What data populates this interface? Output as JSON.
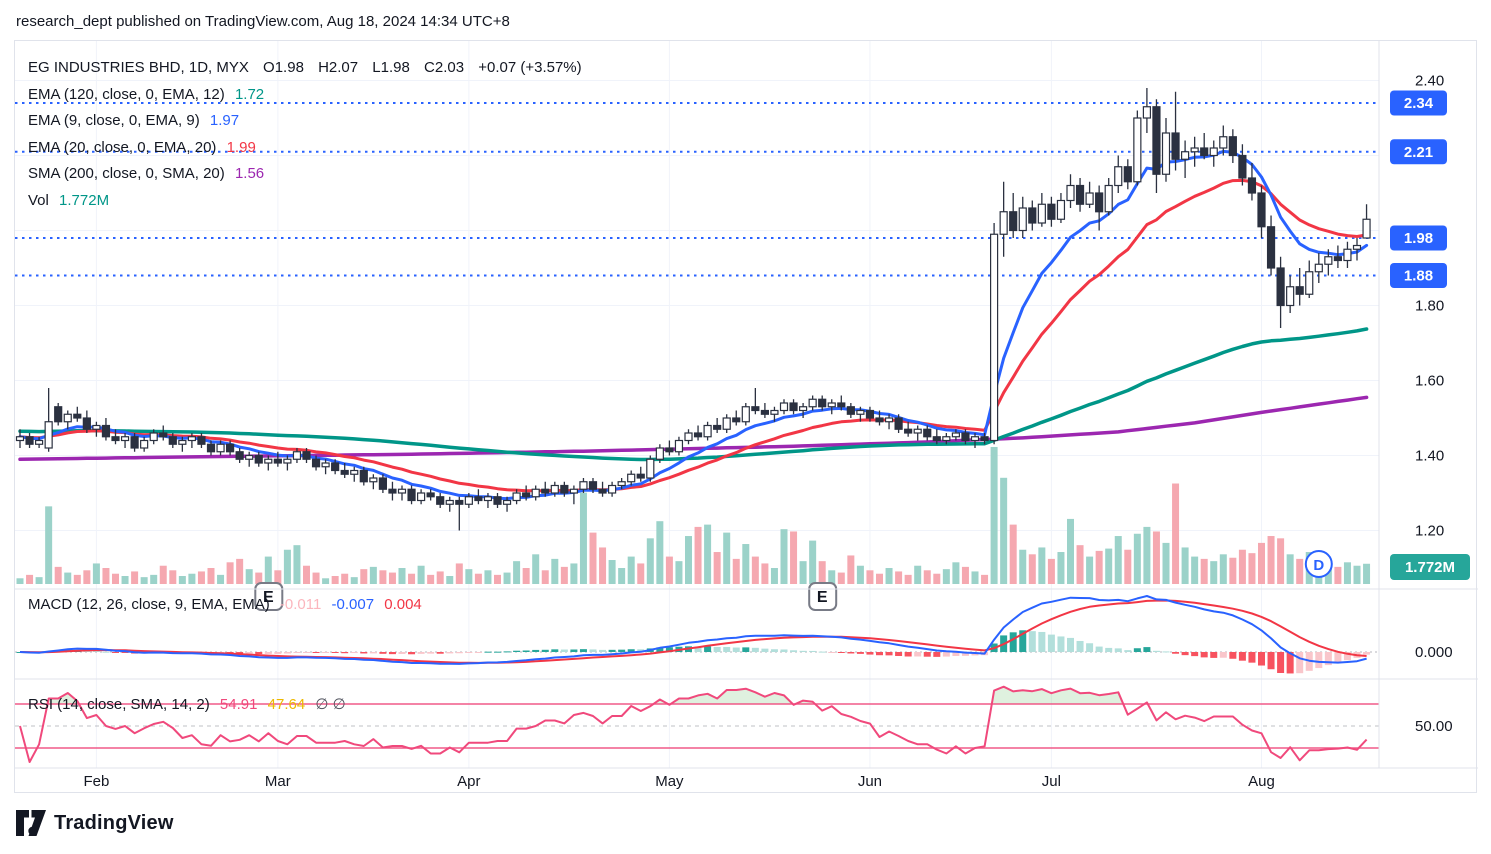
{
  "header": {
    "attribution": "research_dept published on TradingView.com, Aug 18, 2024 14:34 UTC+8"
  },
  "footer": {
    "brand": "TradingView"
  },
  "legend": {
    "symbol_row": {
      "title": "EG INDUSTRIES BHD, 1D, MYX",
      "o": "O1.98",
      "h": "H2.07",
      "l": "L1.98",
      "c": "C2.03",
      "change": "+0.07 (+3.57%)"
    },
    "ema120": {
      "label": "EMA (120, close, 0, EMA, 12)",
      "value": "1.72",
      "color": "#009688"
    },
    "ema9": {
      "label": "EMA (9, close, 0, EMA, 9)",
      "value": "1.97",
      "color": "#2962ff"
    },
    "ema20": {
      "label": "EMA (20, close, 0, EMA, 20)",
      "value": "1.99",
      "color": "#f23645"
    },
    "sma200": {
      "label": "SMA (200, close, 0, SMA, 20)",
      "value": "1.56",
      "color": "#9c27b0"
    },
    "vol": {
      "label": "Vol",
      "value": "1.772M",
      "color": "#009688"
    },
    "macd": {
      "label": "MACD (12, 26, close, 9, EMA, EMA)",
      "hist_value": "-0.011",
      "macd_value": "-0.007",
      "signal_value": "0.004",
      "hist_color": "#fbb6bd",
      "macd_color": "#2962ff",
      "signal_color": "#f23645"
    },
    "rsi": {
      "label": "RSI (14, close, SMA, 14, 2)",
      "value1": "54.91",
      "value2": "47.64",
      "empty": "∅ ∅",
      "value1_color": "#f0497c",
      "value2_color": "#edb800",
      "empty_color": "#50535e"
    }
  },
  "chart_data": {
    "type": "candlestick",
    "title": "EG INDUSTRIES BHD",
    "interval": "1D",
    "exchange": "MYX",
    "last_bar": {
      "open": 1.98,
      "high": 2.07,
      "low": 1.98,
      "close": 2.03,
      "change": 0.07,
      "change_pct": 3.57
    },
    "indicator_values": {
      "ema120": 1.72,
      "ema9": 1.97,
      "ema20": 1.99,
      "sma200": 1.56,
      "volume": "1.772M",
      "macd_hist": -0.011,
      "macd": -0.007,
      "macd_signal": 0.004,
      "rsi": 54.91,
      "rsi_sma": 47.64
    },
    "ylim": [
      1.14,
      2.46
    ],
    "y_ticks": [
      2.4,
      2.2,
      2.0,
      1.8,
      1.6,
      1.4,
      1.2
    ],
    "y_tick_labels": [
      "2.40",
      "1.80",
      "1.60",
      "1.40",
      "1.20"
    ],
    "y_tick_label_prices": [
      2.4,
      1.8,
      1.6,
      1.4,
      1.2
    ],
    "levels": [
      {
        "price": 2.34,
        "label": "2.34"
      },
      {
        "price": 2.21,
        "label": "2.21"
      },
      {
        "price": 1.98,
        "label": "1.98"
      },
      {
        "price": 1.88,
        "label": "1.88"
      }
    ],
    "volume_badge": {
      "label": "1.772M",
      "color": "#26a69a"
    },
    "macd_axis_label": "0.000",
    "rsi_axis_label": "50.00",
    "rsi_bands": [
      70,
      50,
      30
    ],
    "months": [
      {
        "label": "Feb",
        "index": 8
      },
      {
        "label": "Mar",
        "index": 27
      },
      {
        "label": "Apr",
        "index": 47
      },
      {
        "label": "May",
        "index": 68
      },
      {
        "label": "Jun",
        "index": 89
      },
      {
        "label": "Jul",
        "index": 108
      },
      {
        "label": "Aug",
        "index": 130
      }
    ],
    "markers": [
      {
        "type": "E",
        "index": 26
      },
      {
        "type": "E",
        "index": 84
      },
      {
        "type": "D",
        "index": 136
      }
    ],
    "sma200_anchors": [
      [
        0,
        1.39
      ],
      [
        20,
        1.397
      ],
      [
        40,
        1.403
      ],
      [
        60,
        1.412
      ],
      [
        80,
        1.424
      ],
      [
        95,
        1.436
      ],
      [
        105,
        1.447
      ],
      [
        115,
        1.463
      ],
      [
        123,
        1.487
      ],
      [
        130,
        1.515
      ],
      [
        136,
        1.537
      ],
      [
        141,
        1.555
      ]
    ],
    "candles": [
      [
        1.44,
        1.47,
        1.42,
        1.45,
        0.5
      ],
      [
        1.45,
        1.46,
        1.42,
        1.43,
        0.8
      ],
      [
        1.43,
        1.45,
        1.42,
        1.44,
        0.6
      ],
      [
        1.42,
        1.58,
        1.41,
        1.49,
        6.8
      ],
      [
        1.53,
        1.54,
        1.48,
        1.49,
        1.5
      ],
      [
        1.49,
        1.52,
        1.47,
        1.51,
        1.0
      ],
      [
        1.51,
        1.53,
        1.49,
        1.5,
        0.8
      ],
      [
        1.5,
        1.52,
        1.46,
        1.47,
        1.2
      ],
      [
        1.47,
        1.49,
        1.45,
        1.48,
        1.8
      ],
      [
        1.48,
        1.5,
        1.44,
        1.45,
        1.4
      ],
      [
        1.45,
        1.47,
        1.43,
        1.44,
        0.9
      ],
      [
        1.44,
        1.46,
        1.42,
        1.45,
        0.7
      ],
      [
        1.45,
        1.46,
        1.41,
        1.42,
        1.1
      ],
      [
        1.42,
        1.45,
        1.41,
        1.44,
        0.6
      ],
      [
        1.44,
        1.47,
        1.43,
        1.46,
        0.8
      ],
      [
        1.46,
        1.48,
        1.44,
        1.45,
        1.6
      ],
      [
        1.45,
        1.46,
        1.42,
        1.43,
        1.2
      ],
      [
        1.43,
        1.45,
        1.41,
        1.44,
        0.7
      ],
      [
        1.44,
        1.46,
        1.42,
        1.45,
        0.9
      ],
      [
        1.45,
        1.46,
        1.42,
        1.43,
        1.1
      ],
      [
        1.43,
        1.44,
        1.4,
        1.41,
        1.4
      ],
      [
        1.41,
        1.44,
        1.4,
        1.43,
        0.8
      ],
      [
        1.43,
        1.44,
        1.4,
        1.41,
        1.9
      ],
      [
        1.41,
        1.42,
        1.38,
        1.39,
        2.2
      ],
      [
        1.39,
        1.41,
        1.37,
        1.4,
        1.3
      ],
      [
        1.4,
        1.41,
        1.37,
        1.38,
        1.0
      ],
      [
        1.38,
        1.4,
        1.36,
        1.39,
        2.4
      ],
      [
        1.39,
        1.41,
        1.37,
        1.38,
        1.2
      ],
      [
        1.38,
        1.4,
        1.36,
        1.39,
        3.0
      ],
      [
        1.39,
        1.42,
        1.38,
        1.41,
        3.4
      ],
      [
        1.41,
        1.42,
        1.38,
        1.39,
        1.6
      ],
      [
        1.39,
        1.4,
        1.36,
        1.37,
        1.0
      ],
      [
        1.37,
        1.39,
        1.35,
        1.38,
        0.5
      ],
      [
        1.38,
        1.39,
        1.35,
        1.36,
        0.7
      ],
      [
        1.36,
        1.38,
        1.34,
        1.35,
        0.9
      ],
      [
        1.35,
        1.37,
        1.33,
        1.36,
        0.6
      ],
      [
        1.36,
        1.37,
        1.32,
        1.33,
        1.3
      ],
      [
        1.33,
        1.35,
        1.31,
        1.34,
        1.5
      ],
      [
        1.34,
        1.35,
        1.3,
        1.31,
        1.2
      ],
      [
        1.31,
        1.33,
        1.28,
        1.3,
        1.0
      ],
      [
        1.3,
        1.32,
        1.28,
        1.31,
        1.4
      ],
      [
        1.31,
        1.32,
        1.27,
        1.28,
        0.9
      ],
      [
        1.28,
        1.31,
        1.27,
        1.3,
        1.6
      ],
      [
        1.3,
        1.31,
        1.28,
        1.29,
        0.8
      ],
      [
        1.29,
        1.3,
        1.26,
        1.27,
        1.1
      ],
      [
        1.27,
        1.29,
        1.25,
        1.28,
        0.7
      ],
      [
        1.28,
        1.29,
        1.2,
        1.27,
        1.8
      ],
      [
        1.27,
        1.3,
        1.26,
        1.29,
        1.3
      ],
      [
        1.29,
        1.31,
        1.27,
        1.28,
        0.9
      ],
      [
        1.28,
        1.3,
        1.26,
        1.29,
        1.2
      ],
      [
        1.29,
        1.3,
        1.26,
        1.27,
        0.8
      ],
      [
        1.27,
        1.29,
        1.25,
        1.28,
        1.0
      ],
      [
        1.28,
        1.31,
        1.27,
        1.3,
        2.0
      ],
      [
        1.3,
        1.32,
        1.28,
        1.29,
        1.4
      ],
      [
        1.29,
        1.32,
        1.28,
        1.31,
        2.6
      ],
      [
        1.31,
        1.33,
        1.29,
        1.3,
        1.2
      ],
      [
        1.3,
        1.33,
        1.29,
        1.32,
        2.2
      ],
      [
        1.32,
        1.33,
        1.29,
        1.3,
        1.5
      ],
      [
        1.3,
        1.32,
        1.27,
        1.31,
        1.8
      ],
      [
        1.31,
        1.34,
        1.3,
        1.33,
        8.0
      ],
      [
        1.33,
        1.34,
        1.3,
        1.31,
        4.5
      ],
      [
        1.31,
        1.33,
        1.29,
        1.3,
        3.2
      ],
      [
        1.3,
        1.33,
        1.29,
        1.32,
        2.1
      ],
      [
        1.32,
        1.34,
        1.31,
        1.33,
        1.4
      ],
      [
        1.33,
        1.36,
        1.32,
        1.35,
        2.4
      ],
      [
        1.35,
        1.37,
        1.33,
        1.34,
        1.8
      ],
      [
        1.34,
        1.4,
        1.33,
        1.39,
        4.0
      ],
      [
        1.39,
        1.43,
        1.38,
        1.42,
        5.5
      ],
      [
        1.42,
        1.44,
        1.4,
        1.41,
        2.4
      ],
      [
        1.41,
        1.45,
        1.4,
        1.44,
        2.0
      ],
      [
        1.44,
        1.47,
        1.43,
        1.46,
        4.2
      ],
      [
        1.46,
        1.48,
        1.44,
        1.45,
        5.0
      ],
      [
        1.45,
        1.49,
        1.44,
        1.48,
        5.2
      ],
      [
        1.48,
        1.5,
        1.46,
        1.47,
        2.8
      ],
      [
        1.47,
        1.51,
        1.46,
        1.5,
        4.5
      ],
      [
        1.5,
        1.52,
        1.48,
        1.49,
        2.2
      ],
      [
        1.49,
        1.54,
        1.48,
        1.53,
        3.5
      ],
      [
        1.53,
        1.58,
        1.51,
        1.52,
        2.4
      ],
      [
        1.52,
        1.54,
        1.5,
        1.51,
        1.8
      ],
      [
        1.51,
        1.53,
        1.49,
        1.52,
        1.4
      ],
      [
        1.52,
        1.55,
        1.51,
        1.54,
        4.8
      ],
      [
        1.54,
        1.55,
        1.51,
        1.52,
        4.6
      ],
      [
        1.52,
        1.54,
        1.5,
        1.53,
        2.0
      ],
      [
        1.53,
        1.56,
        1.52,
        1.55,
        3.8
      ],
      [
        1.55,
        1.56,
        1.52,
        1.53,
        2.0
      ],
      [
        1.53,
        1.55,
        1.51,
        1.54,
        1.2
      ],
      [
        1.54,
        1.56,
        1.52,
        1.53,
        1.0
      ],
      [
        1.53,
        1.54,
        1.5,
        1.51,
        2.5
      ],
      [
        1.51,
        1.53,
        1.49,
        1.52,
        1.6
      ],
      [
        1.52,
        1.53,
        1.49,
        1.5,
        1.2
      ],
      [
        1.5,
        1.52,
        1.48,
        1.49,
        0.9
      ],
      [
        1.49,
        1.51,
        1.47,
        1.5,
        1.4
      ],
      [
        1.5,
        1.51,
        1.46,
        1.47,
        1.1
      ],
      [
        1.47,
        1.49,
        1.45,
        1.46,
        0.8
      ],
      [
        1.46,
        1.48,
        1.44,
        1.47,
        1.6
      ],
      [
        1.47,
        1.48,
        1.44,
        1.45,
        1.2
      ],
      [
        1.45,
        1.47,
        1.43,
        1.44,
        0.9
      ],
      [
        1.44,
        1.46,
        1.43,
        1.45,
        1.3
      ],
      [
        1.45,
        1.47,
        1.44,
        1.46,
        1.9
      ],
      [
        1.46,
        1.47,
        1.43,
        1.44,
        1.5
      ],
      [
        1.44,
        1.46,
        1.42,
        1.45,
        1.1
      ],
      [
        1.45,
        1.46,
        1.43,
        1.44,
        0.8
      ],
      [
        1.44,
        2.02,
        1.43,
        1.99,
        12.0
      ],
      [
        1.99,
        2.13,
        1.93,
        2.05,
        9.3
      ],
      [
        2.05,
        2.1,
        1.98,
        2.0,
        5.2
      ],
      [
        2.0,
        2.09,
        1.98,
        2.06,
        3.0
      ],
      [
        2.06,
        2.08,
        2.0,
        2.02,
        2.6
      ],
      [
        2.02,
        2.1,
        2.01,
        2.07,
        3.2
      ],
      [
        2.07,
        2.09,
        2.01,
        2.03,
        2.2
      ],
      [
        2.03,
        2.1,
        2.02,
        2.08,
        2.8
      ],
      [
        2.08,
        2.15,
        2.06,
        2.12,
        5.7
      ],
      [
        2.12,
        2.14,
        2.05,
        2.07,
        3.4
      ],
      [
        2.07,
        2.13,
        2.06,
        2.1,
        2.4
      ],
      [
        2.1,
        2.12,
        2.0,
        2.05,
        2.9
      ],
      [
        2.05,
        2.14,
        2.04,
        2.12,
        3.1
      ],
      [
        2.12,
        2.2,
        2.1,
        2.17,
        4.2
      ],
      [
        2.17,
        2.19,
        2.11,
        2.13,
        3.0
      ],
      [
        2.13,
        2.32,
        2.12,
        2.3,
        4.4
      ],
      [
        2.3,
        2.38,
        2.26,
        2.33,
        5.0
      ],
      [
        2.33,
        2.35,
        2.1,
        2.15,
        4.6
      ],
      [
        2.15,
        2.3,
        2.13,
        2.26,
        3.6
      ],
      [
        2.26,
        2.37,
        2.16,
        2.19,
        8.8
      ],
      [
        2.19,
        2.24,
        2.14,
        2.21,
        3.2
      ],
      [
        2.21,
        2.25,
        2.17,
        2.22,
        2.4
      ],
      [
        2.22,
        2.26,
        2.19,
        2.2,
        2.2
      ],
      [
        2.2,
        2.24,
        2.17,
        2.22,
        2.0
      ],
      [
        2.22,
        2.28,
        2.2,
        2.25,
        2.6
      ],
      [
        2.25,
        2.27,
        2.18,
        2.2,
        2.3
      ],
      [
        2.2,
        2.23,
        2.12,
        2.14,
        3.0
      ],
      [
        2.14,
        2.18,
        2.08,
        2.1,
        2.7
      ],
      [
        2.1,
        2.12,
        1.98,
        2.01,
        3.6
      ],
      [
        2.01,
        2.04,
        1.88,
        1.9,
        4.2
      ],
      [
        1.9,
        1.93,
        1.74,
        1.8,
        4.0
      ],
      [
        1.8,
        1.88,
        1.78,
        1.85,
        2.6
      ],
      [
        1.85,
        1.9,
        1.8,
        1.83,
        2.2
      ],
      [
        1.83,
        1.92,
        1.82,
        1.89,
        2.8
      ],
      [
        1.89,
        1.94,
        1.86,
        1.91,
        2.0
      ],
      [
        1.91,
        1.95,
        1.88,
        1.93,
        1.8
      ],
      [
        1.93,
        1.96,
        1.9,
        1.92,
        1.5
      ],
      [
        1.92,
        1.97,
        1.9,
        1.95,
        1.9
      ],
      [
        1.95,
        1.98,
        1.92,
        1.96,
        1.6
      ],
      [
        1.98,
        2.07,
        1.98,
        2.03,
        1.772
      ]
    ],
    "style": {
      "up_fill": "#ffffff",
      "down_fill": "#2b3140",
      "candle_border": "#2b3140",
      "vol_up": "#9bd2c9",
      "vol_down": "#f5a8b0",
      "ema9": "#2962ff",
      "ema20": "#f23645",
      "ema120": "#009688",
      "sma200": "#9c27b0",
      "level_blue": "#2962ff",
      "badge_blue": "#2962ff",
      "vol_badge": "#26a69a",
      "macd_line": "#2962ff",
      "macd_signal": "#f23645",
      "hist_pos_grow": "#26a69a",
      "hist_pos_fall": "#b2dfdb",
      "hist_neg_fall": "#f7525f",
      "hist_neg_rise": "#f9c6cb",
      "rsi_line": "#f0497c",
      "rsi_fill": "rgba(76,175,80,0.18)",
      "grid": "#f0f3fa",
      "frame": "#e0e3eb",
      "text": "#131722"
    }
  }
}
